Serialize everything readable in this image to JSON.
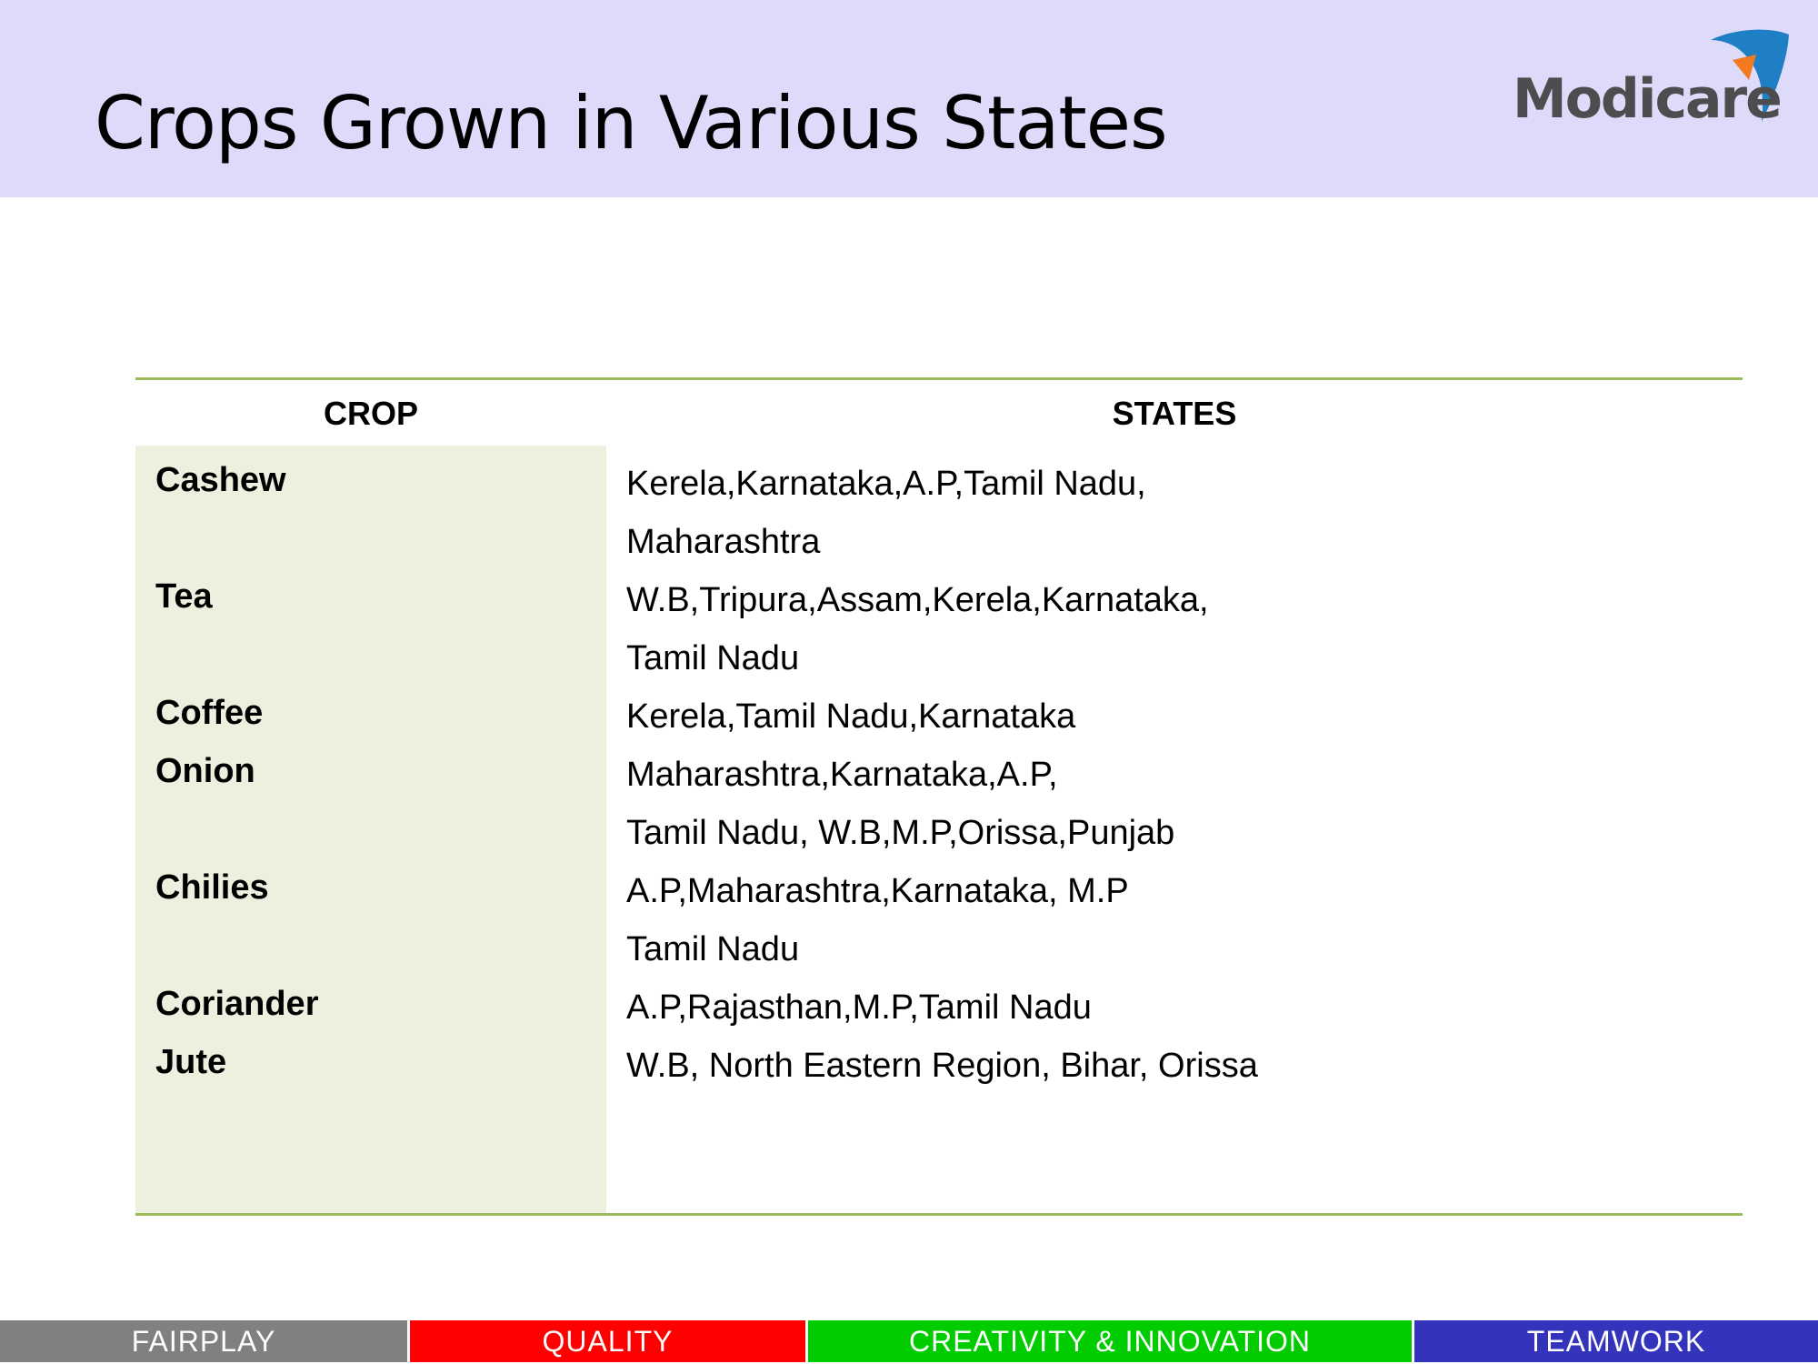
{
  "slide": {
    "title": "Crops Grown in Various States"
  },
  "logo": {
    "text": "Modicare"
  },
  "table": {
    "headers": {
      "crop": "CROP",
      "states": "STATES"
    },
    "rows": [
      {
        "crop": "Cashew",
        "states": [
          "Kerela,Karnataka,A.P,Tamil Nadu,",
          "Maharashtra"
        ]
      },
      {
        "crop": "Tea",
        "states": [
          "W.B,Tripura,Assam,Kerela,Karnataka,",
          "Tamil Nadu"
        ]
      },
      {
        "crop": "Coffee",
        "states": [
          "Kerela,Tamil Nadu,Karnataka"
        ]
      },
      {
        "crop": "Onion",
        "states": [
          "Maharashtra,Karnataka,A.P,",
          "Tamil Nadu, W.B,M.P,Orissa,Punjab"
        ]
      },
      {
        "crop": "Chilies",
        "states": [
          "A.P,Maharashtra,Karnataka, M.P",
          "Tamil Nadu"
        ]
      },
      {
        "crop": "Coriander",
        "states": [
          "A.P,Rajasthan,M.P,Tamil Nadu"
        ]
      },
      {
        "crop": "Jute",
        "states": [
          "W.B, North Eastern Region, Bihar, Orissa"
        ]
      }
    ]
  },
  "footer": {
    "segments": [
      {
        "label": "FAIRPLAY",
        "color": "#808080"
      },
      {
        "label": "QUALITY",
        "color": "#ff0000"
      },
      {
        "label": "CREATIVITY & INNOVATION",
        "color": "#00cc00"
      },
      {
        "label": "TEAMWORK",
        "color": "#3333bb"
      }
    ]
  },
  "colors": {
    "header_band": "#dedafa",
    "table_rule": "#9bbb59",
    "crop_column_fill": "#ebf1de",
    "logo_text": "#4d4d4f",
    "logo_blue": "#1f7fc4",
    "logo_orange": "#f47a20"
  }
}
